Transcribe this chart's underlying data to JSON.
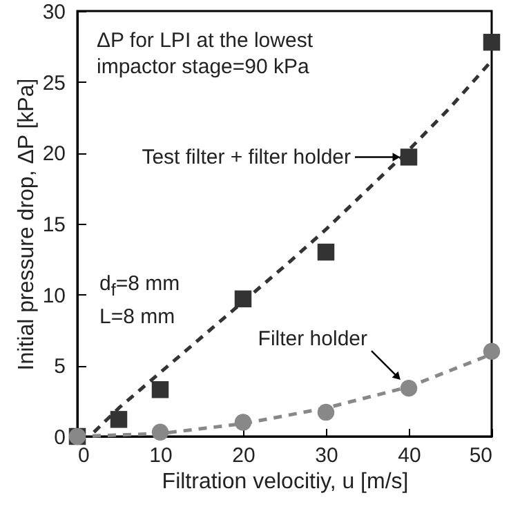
{
  "chart_data": {
    "type": "scatter",
    "xlabel": "Filtration velocitiy, u [m/s]",
    "ylabel": "Initial pressure drop, ΔP [kPa]",
    "xlim": [
      0,
      50
    ],
    "xticks": [
      0,
      10,
      20,
      30,
      40,
      50
    ],
    "ylim": [
      0,
      30
    ],
    "yticks": [
      0,
      5,
      10,
      15,
      20,
      25,
      30
    ],
    "grid": false,
    "series": [
      {
        "marker": "square",
        "color": "#333333",
        "x": [
          0,
          5,
          10,
          20,
          30,
          40,
          50
        ],
        "values": [
          0,
          1.2,
          3.3,
          9.7,
          13,
          19.7,
          27.8
        ]
      },
      {
        "marker": "circle",
        "color": "#888888",
        "x": [
          0,
          10,
          20,
          30,
          40,
          50
        ],
        "values": [
          0,
          0.3,
          1.0,
          1.7,
          3.4,
          6.0
        ]
      },
      {
        "type": "line",
        "marker": "none",
        "line_style": "dashed",
        "color": "#333333",
        "x": [
          2,
          5,
          10,
          15,
          20,
          25,
          30,
          35,
          40,
          45,
          50
        ],
        "values": [
          0.3,
          2.0,
          4.5,
          7.0,
          9.5,
          12.0,
          14.6,
          17.4,
          20.2,
          23.2,
          26.5
        ]
      },
      {
        "type": "line",
        "marker": "none",
        "line_style": "dashed",
        "color": "#888888",
        "x": [
          0,
          10,
          20,
          30,
          40,
          50
        ],
        "values": [
          0,
          0.2,
          0.9,
          2.0,
          3.5,
          5.8
        ]
      }
    ],
    "annotations": [
      "ΔP for LPI at the lowest impactor stage=90 kPa",
      "d$_{f}$=8 mm\nL=8 mm",
      {
        "text": "Test filter + filter holder",
        "x": 40,
        "y": 19.7
      },
      {
        "text": "Filter holder",
        "x": 40,
        "y": 3.4
      }
    ]
  }
}
